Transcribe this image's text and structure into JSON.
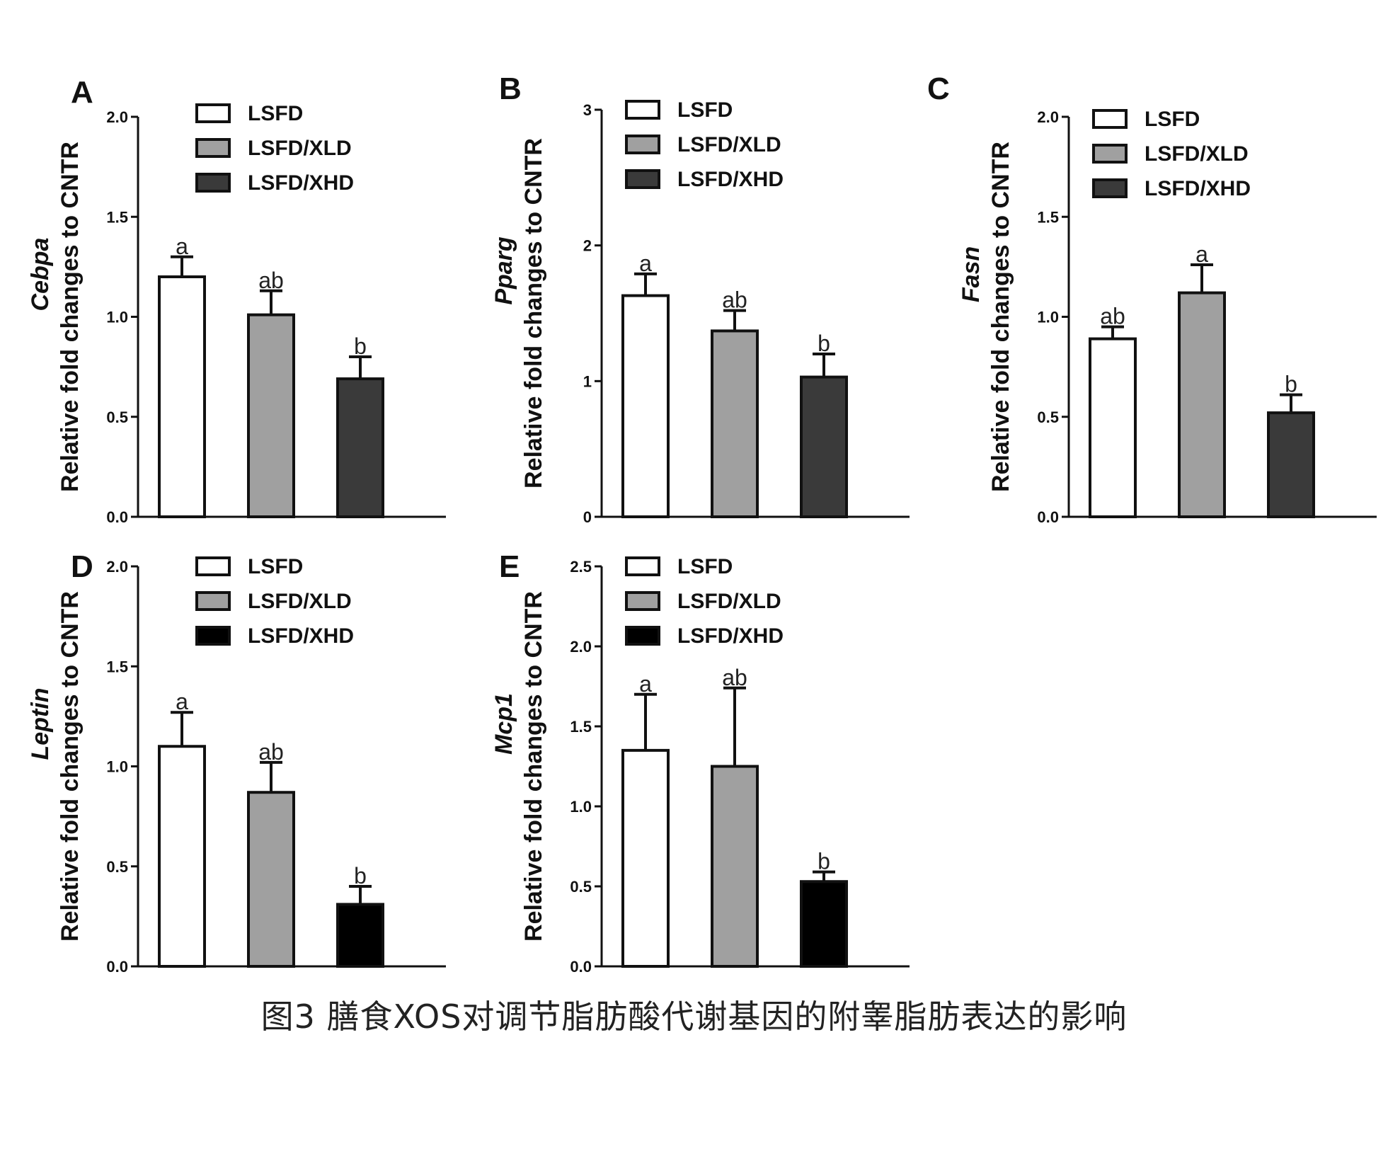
{
  "caption": "图3 膳食XOS对调节脂肪酸代谢基因的附睾脂肪表达的影响",
  "ylabel_common": "Relative fold changes to CNTR",
  "colors": {
    "LSFD": "#ffffff",
    "LSFD/XLD": "#a0a0a0",
    "LSFD/XHD_dark": "#3a3a3a",
    "LSFD/XHD_black": "#000000"
  },
  "chart_data": [
    {
      "panel": "A",
      "type": "bar",
      "gene": "Cebpa",
      "categories": [
        "LSFD",
        "LSFD/XLD",
        "LSFD/XHD"
      ],
      "values": [
        1.2,
        1.01,
        0.69
      ],
      "errors": [
        0.1,
        0.12,
        0.11
      ],
      "letters": [
        "a",
        "ab",
        "b"
      ],
      "ylim": [
        0,
        2.0
      ],
      "yticks": [
        "0.0",
        "0.5",
        "1.0",
        "1.5",
        "2.0"
      ],
      "ytick_values": [
        0,
        0.5,
        1.0,
        1.5,
        2.0
      ],
      "legend": [
        "LSFD",
        "LSFD/XLD",
        "LSFD/XHD"
      ],
      "colors": [
        "#ffffff",
        "#a0a0a0",
        "#3a3a3a"
      ]
    },
    {
      "panel": "B",
      "type": "bar",
      "gene": "Pparg",
      "categories": [
        "LSFD",
        "LSFD/XLD",
        "LSFD/XHD"
      ],
      "values": [
        1.63,
        1.37,
        1.03
      ],
      "errors": [
        0.16,
        0.15,
        0.17
      ],
      "letters": [
        "a",
        "ab",
        "b"
      ],
      "ylim": [
        0,
        3
      ],
      "yticks": [
        "0",
        "1",
        "2",
        "3"
      ],
      "ytick_values": [
        0,
        1,
        2,
        3
      ],
      "legend": [
        "LSFD",
        "LSFD/XLD",
        "LSFD/XHD"
      ],
      "colors": [
        "#ffffff",
        "#a0a0a0",
        "#3a3a3a"
      ]
    },
    {
      "panel": "C",
      "type": "bar",
      "gene": "Fasn",
      "categories": [
        "LSFD",
        "LSFD/XLD",
        "LSFD/XHD"
      ],
      "values": [
        0.89,
        1.12,
        0.52
      ],
      "errors": [
        0.06,
        0.14,
        0.09
      ],
      "letters": [
        "ab",
        "a",
        "b"
      ],
      "ylim": [
        0,
        2.0
      ],
      "yticks": [
        "0.0",
        "0.5",
        "1.0",
        "1.5",
        "2.0"
      ],
      "ytick_values": [
        0,
        0.5,
        1.0,
        1.5,
        2.0
      ],
      "legend": [
        "LSFD",
        "LSFD/XLD",
        "LSFD/XHD"
      ],
      "colors": [
        "#ffffff",
        "#a0a0a0",
        "#3a3a3a"
      ]
    },
    {
      "panel": "D",
      "type": "bar",
      "gene": "Leptin",
      "categories": [
        "LSFD",
        "LSFD/XLD",
        "LSFD/XHD"
      ],
      "values": [
        1.1,
        0.87,
        0.31
      ],
      "errors": [
        0.17,
        0.15,
        0.09
      ],
      "letters": [
        "a",
        "ab",
        "b"
      ],
      "ylim": [
        0,
        2.0
      ],
      "yticks": [
        "0.0",
        "0.5",
        "1.0",
        "1.5",
        "2.0"
      ],
      "ytick_values": [
        0,
        0.5,
        1.0,
        1.5,
        2.0
      ],
      "legend": [
        "LSFD",
        "LSFD/XLD",
        "LSFD/XHD"
      ],
      "colors": [
        "#ffffff",
        "#a0a0a0",
        "#000000"
      ]
    },
    {
      "panel": "E",
      "type": "bar",
      "gene": "Mcp1",
      "categories": [
        "LSFD",
        "LSFD/XLD",
        "LSFD/XHD"
      ],
      "values": [
        1.35,
        1.25,
        0.53
      ],
      "errors": [
        0.35,
        0.49,
        0.06
      ],
      "letters": [
        "a",
        "ab",
        "b"
      ],
      "ylim": [
        0,
        2.5
      ],
      "yticks": [
        "0.0",
        "0.5",
        "1.0",
        "1.5",
        "2.0",
        "2.5"
      ],
      "ytick_values": [
        0,
        0.5,
        1.0,
        1.5,
        2.0,
        2.5
      ],
      "legend": [
        "LSFD",
        "LSFD/XLD",
        "LSFD/XHD"
      ],
      "colors": [
        "#ffffff",
        "#a0a0a0",
        "#000000"
      ]
    }
  ]
}
